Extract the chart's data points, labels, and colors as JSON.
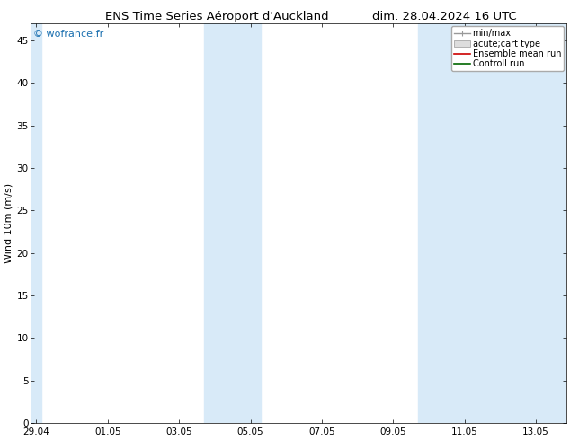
{
  "title_left": "ENS Time Series Aéroport d'Auckland",
  "title_right": "dim. 28.04.2024 16 UTC",
  "ylabel": "Wind 10m (m/s)",
  "ylim": [
    0,
    47
  ],
  "yticks": [
    0,
    5,
    10,
    15,
    20,
    25,
    30,
    35,
    40,
    45
  ],
  "xtick_labels": [
    "29.04",
    "01.05",
    "03.05",
    "05.05",
    "07.05",
    "09.05",
    "11.05",
    "13.05"
  ],
  "xtick_positions": [
    0,
    2,
    4,
    6,
    8,
    10,
    12,
    14
  ],
  "xmin": -0.15,
  "xmax": 14.85,
  "shaded_bands": [
    {
      "x_start": 4.7,
      "x_end": 6.3,
      "color": "#d8eaf8"
    },
    {
      "x_start": 10.7,
      "x_end": 14.85,
      "color": "#d8eaf8"
    }
  ],
  "left_shade": {
    "x_start": -0.15,
    "x_end": 0.15,
    "color": "#d8eaf8"
  },
  "background_color": "#ffffff",
  "plot_bg_color": "#ffffff",
  "watermark_text": "© wofrance.fr",
  "watermark_color": "#1a6faf",
  "font_size_title": 9.5,
  "font_size_axis": 8,
  "font_size_tick": 7.5,
  "font_size_legend": 7,
  "font_size_watermark": 8
}
